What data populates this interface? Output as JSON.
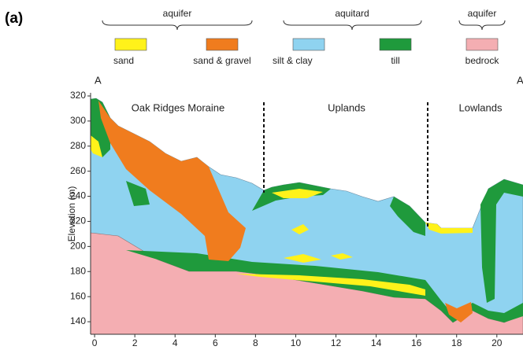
{
  "chart_data": {
    "type": "cross-section",
    "panel_label": "(a)",
    "legend_groups": [
      "aquifer",
      "aquitard",
      "aquifer"
    ],
    "legend": [
      {
        "name": "sand",
        "color": "#fff21a"
      },
      {
        "name": "sand & gravel",
        "color": "#f07c1e"
      },
      {
        "name": "silt & clay",
        "color": "#8fd3f0"
      },
      {
        "name": "till",
        "color": "#1f9a3c"
      },
      {
        "name": "bedrock",
        "color": "#f4aeb2"
      }
    ],
    "section_start": "A",
    "section_end": "A",
    "regions": [
      "Oak Ridges Moraine",
      "Uplands",
      "Lowlands"
    ],
    "ylabel": "Elevation (m)",
    "xlim": [
      -0.2,
      21.3
    ],
    "ylim": [
      130,
      322.5
    ],
    "xticks": [
      0,
      2,
      4,
      6,
      8,
      10,
      12,
      14,
      16,
      18,
      20
    ],
    "yticks": [
      140,
      160,
      180,
      200,
      220,
      240,
      260,
      280,
      300,
      320
    ]
  }
}
